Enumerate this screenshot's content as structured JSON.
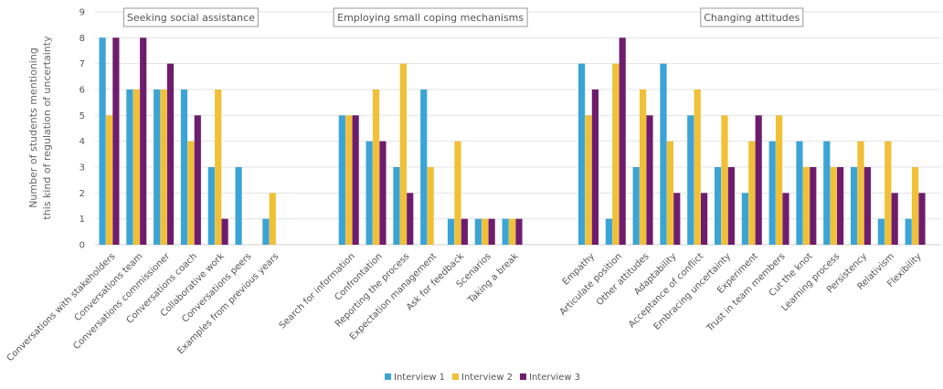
{
  "chart_data": {
    "type": "bar",
    "ylabel": [
      "Number of students mentioning",
      "this kind of regulation of uncertainty"
    ],
    "ylim": [
      0,
      9
    ],
    "yticks": [
      0,
      1,
      2,
      3,
      4,
      5,
      6,
      7,
      8,
      9
    ],
    "grid": true,
    "legend_position": "bottom-center",
    "groups": [
      {
        "label": "Seeking social assistance",
        "categories": [
          "Conversations with stakeholders",
          "Conversations team",
          "Conversations commissioner",
          "Conversations coach",
          "Collaborative work",
          "Conversations peers",
          "Examples from previous years"
        ]
      },
      {
        "label": "Employing small coping mechanisms",
        "categories": [
          "Search for information",
          "Confrontation",
          "Reporting the process",
          "Expectation management",
          "Ask for feedback",
          "Scenarios",
          "Taking a break"
        ]
      },
      {
        "label": "Changing attitudes",
        "categories": [
          "Empathy",
          "Articulate position",
          "Other attitudes",
          "Adaptability",
          "Acceptance of conflict",
          "Embracing uncertainty",
          "Experiment",
          "Trust in team members",
          "Cut the knot",
          "Learning process",
          "Persistency",
          "Relativism",
          "Flexibility"
        ]
      }
    ],
    "series": [
      {
        "name": "Interview 1",
        "color": "#3ba4d6",
        "values": [
          8,
          6,
          6,
          6,
          3,
          3,
          1,
          5,
          4,
          3,
          6,
          1,
          1,
          1,
          7,
          1,
          3,
          7,
          5,
          3,
          2,
          4,
          4,
          4,
          3,
          1,
          1
        ]
      },
      {
        "name": "Interview 2",
        "color": "#f0c036",
        "values": [
          5,
          6,
          6,
          4,
          6,
          0,
          2,
          5,
          6,
          7,
          3,
          4,
          1,
          1,
          5,
          7,
          6,
          4,
          6,
          5,
          4,
          5,
          3,
          3,
          4,
          4,
          3
        ]
      },
      {
        "name": "Interview 3",
        "color": "#6e1d6e",
        "values": [
          8,
          8,
          7,
          5,
          1,
          0,
          0,
          5,
          4,
          2,
          0,
          1,
          1,
          1,
          6,
          8,
          5,
          2,
          2,
          3,
          5,
          2,
          3,
          3,
          3,
          2,
          2
        ]
      }
    ]
  }
}
